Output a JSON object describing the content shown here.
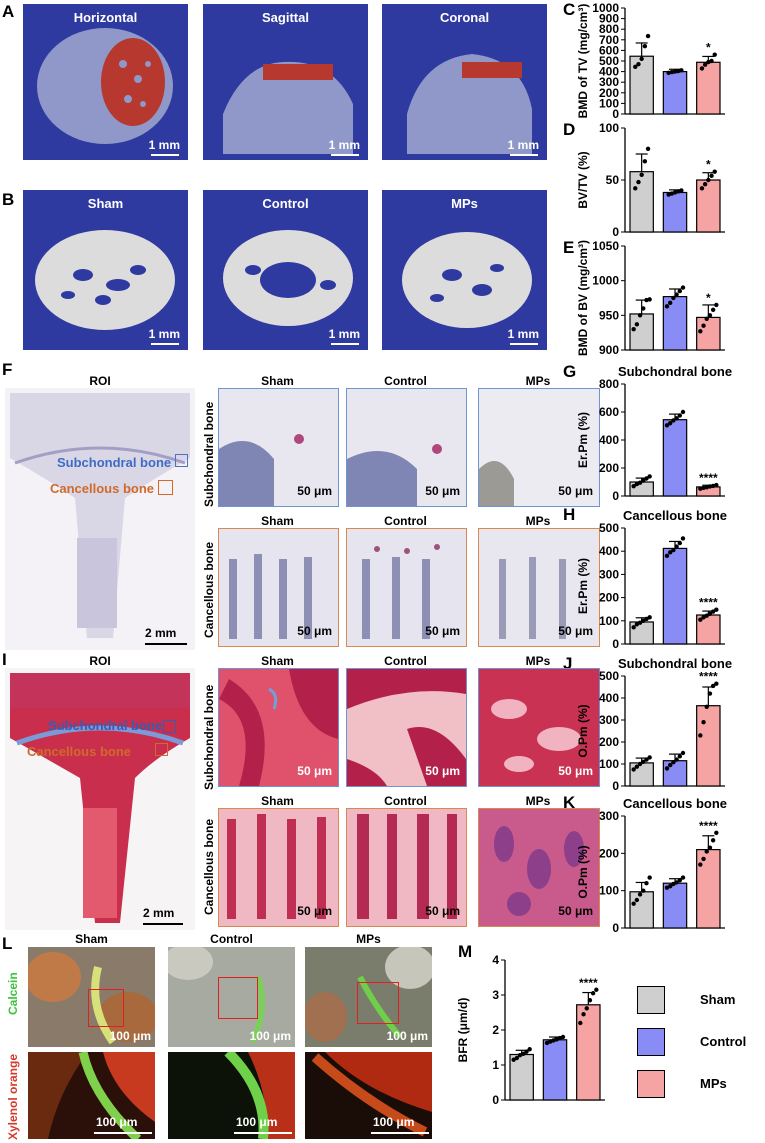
{
  "colors": {
    "sham": "#cfcfcf",
    "control": "#8a8cf5",
    "mps": "#f5a3a3",
    "dots": "#000000",
    "blue_bg": "#2f3aa0"
  },
  "panel_letters": {
    "A": "A",
    "B": "B",
    "C": "C",
    "D": "D",
    "E": "E",
    "F": "F",
    "G": "G",
    "H": "H",
    "I": "I",
    "J": "J",
    "K": "K",
    "L": "L",
    "M": "M"
  },
  "panelA": {
    "titles": [
      "Horizontal",
      "Sagittal",
      "Coronal"
    ],
    "scale": "1 mm"
  },
  "panelB": {
    "titles": [
      "Sham",
      "Control",
      "MPs"
    ],
    "scale": "1 mm"
  },
  "panelF": {
    "roi": "ROI",
    "roi_labels": [
      "Subchondral bone",
      "Cancellous bone"
    ],
    "roi_scale": "2 mm",
    "groups": [
      "Sham",
      "Control",
      "MPs"
    ],
    "rows": [
      "Subchondral bone",
      "Cancellous bone"
    ],
    "scale": "50 μm"
  },
  "panelI": {
    "roi": "ROI",
    "roi_labels": [
      "Subchondral bone",
      "Cancellous bone"
    ],
    "roi_scale": "2 mm",
    "groups": [
      "Sham",
      "Control",
      "MPs"
    ],
    "rows": [
      "Subchondral bone",
      "Cancellous bone"
    ],
    "scale": "50 μm"
  },
  "panelL": {
    "groups": [
      "Sham",
      "Control",
      "MPs"
    ],
    "rows": [
      "Calcein",
      "Xylenol orange"
    ],
    "scale": "100 μm"
  },
  "legend": [
    "Sham",
    "Control",
    "MPs"
  ],
  "chart_data": [
    {
      "id": "C",
      "type": "bar",
      "title": "",
      "ylabel": "BMD of TV (mg/cm³)",
      "ylim": [
        0,
        1000
      ],
      "yticks": [
        0,
        100,
        200,
        300,
        400,
        500,
        600,
        700,
        800,
        900,
        1000
      ],
      "categories": [
        "Sham",
        "Control",
        "MPs"
      ],
      "values": [
        545,
        400,
        488
      ],
      "errors": [
        125,
        22,
        55
      ],
      "points": [
        [
          445,
          470,
          520,
          640,
          735
        ],
        [
          388,
          395,
          400,
          405,
          412
        ],
        [
          430,
          465,
          490,
          500,
          560
        ]
      ],
      "sig": [
        "",
        "",
        "*"
      ]
    },
    {
      "id": "D",
      "type": "bar",
      "title": "",
      "ylabel": "BV/TV (%)",
      "ylim": [
        0,
        100
      ],
      "yticks": [
        0,
        50,
        100
      ],
      "categories": [
        "Sham",
        "Control",
        "MPs"
      ],
      "values": [
        58,
        38,
        50
      ],
      "errors": [
        17,
        2.5,
        7
      ],
      "points": [
        [
          42,
          48,
          55,
          68,
          80
        ],
        [
          36,
          37,
          38,
          39,
          40
        ],
        [
          42,
          46,
          50,
          54,
          58
        ]
      ],
      "sig": [
        "",
        "",
        "*"
      ]
    },
    {
      "id": "E",
      "type": "bar",
      "title": "",
      "ylabel": "BMD of BV (mg/cm³)",
      "ylim": [
        900,
        1050
      ],
      "yticks": [
        900,
        950,
        1000,
        1050
      ],
      "categories": [
        "Sham",
        "Control",
        "MPs"
      ],
      "values": [
        952,
        977,
        947
      ],
      "errors": [
        20,
        11,
        18
      ],
      "points": [
        [
          930,
          937,
          950,
          960,
          972,
          973
        ],
        [
          963,
          968,
          975,
          980,
          985,
          990
        ],
        [
          927,
          935,
          945,
          950,
          958,
          965
        ]
      ],
      "sig": [
        "",
        "",
        "*"
      ]
    },
    {
      "id": "G",
      "type": "bar",
      "title": "Subchondral bone",
      "ylabel": "Er.Pm (%)",
      "ylim": [
        0,
        800
      ],
      "yticks": [
        0,
        200,
        400,
        600,
        800
      ],
      "categories": [
        "Sham",
        "Control",
        "MPs"
      ],
      "values": [
        100,
        545,
        65
      ],
      "errors": [
        28,
        40,
        12
      ],
      "points": [
        [
          70,
          85,
          95,
          110,
          125,
          140
        ],
        [
          505,
          520,
          540,
          555,
          575,
          600
        ],
        [
          52,
          58,
          62,
          68,
          72,
          78
        ]
      ],
      "sig": [
        "",
        "",
        "****"
      ]
    },
    {
      "id": "H",
      "type": "bar",
      "title": "Cancellous bone",
      "ylabel": "Er.Pm (%)",
      "ylim": [
        0,
        500
      ],
      "yticks": [
        0,
        100,
        200,
        300,
        400,
        500
      ],
      "categories": [
        "Sham",
        "Control",
        "MPs"
      ],
      "values": [
        95,
        412,
        125
      ],
      "errors": [
        18,
        30,
        17
      ],
      "points": [
        [
          72,
          85,
          92,
          100,
          108,
          115
        ],
        [
          380,
          395,
          405,
          420,
          435,
          455
        ],
        [
          105,
          115,
          122,
          130,
          140,
          148
        ]
      ],
      "sig": [
        "",
        "",
        "****"
      ]
    },
    {
      "id": "J",
      "type": "bar",
      "title": "Subchondral bone",
      "ylabel": "O.Pm (%)",
      "ylim": [
        0,
        500
      ],
      "yticks": [
        0,
        100,
        200,
        300,
        400,
        500
      ],
      "categories": [
        "Sham",
        "Control",
        "MPs"
      ],
      "values": [
        105,
        115,
        365
      ],
      "errors": [
        22,
        30,
        85
      ],
      "points": [
        [
          75,
          88,
          100,
          110,
          120,
          130
        ],
        [
          80,
          95,
          108,
          120,
          135,
          150
        ],
        [
          230,
          290,
          360,
          420,
          455,
          465
        ]
      ],
      "sig": [
        "",
        "",
        "****"
      ]
    },
    {
      "id": "K",
      "type": "bar",
      "title": "Cancellous bone",
      "ylabel": "O.Pm (%)",
      "ylim": [
        0,
        300
      ],
      "yticks": [
        0,
        100,
        200,
        300
      ],
      "categories": [
        "Sham",
        "Control",
        "MPs"
      ],
      "values": [
        97,
        120,
        210
      ],
      "errors": [
        25,
        12,
        37
      ],
      "points": [
        [
          65,
          75,
          90,
          100,
          120,
          135
        ],
        [
          108,
          112,
          118,
          122,
          128,
          135
        ],
        [
          170,
          185,
          205,
          215,
          235,
          255
        ]
      ],
      "sig": [
        "",
        "",
        "****"
      ]
    },
    {
      "id": "M",
      "type": "bar",
      "title": "",
      "ylabel": "BFR (μm/d)",
      "ylim": [
        0,
        4
      ],
      "yticks": [
        0,
        1,
        2,
        3,
        4
      ],
      "categories": [
        "Sham",
        "Control",
        "MPs"
      ],
      "values": [
        1.3,
        1.72,
        2.72
      ],
      "errors": [
        0.12,
        0.08,
        0.35
      ],
      "points": [
        [
          1.15,
          1.2,
          1.28,
          1.32,
          1.38,
          1.45
        ],
        [
          1.63,
          1.67,
          1.7,
          1.73,
          1.77,
          1.8
        ],
        [
          2.2,
          2.45,
          2.62,
          2.85,
          3.05,
          3.15
        ]
      ],
      "sig": [
        "",
        "",
        "****"
      ]
    }
  ]
}
